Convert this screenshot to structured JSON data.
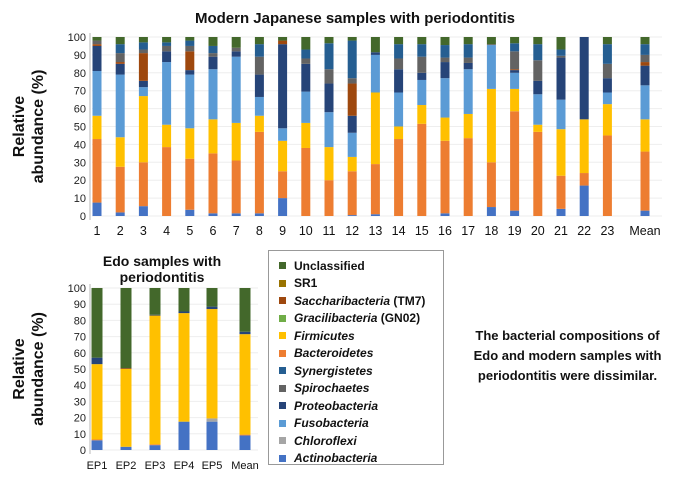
{
  "chart_data": [
    {
      "type": "bar",
      "stacked": true,
      "title": "Modern Japanese samples with periodontitis",
      "ylabel": "Relative abundance (%)",
      "ylim": [
        0,
        100
      ],
      "yticks": [
        0,
        10,
        20,
        30,
        40,
        50,
        60,
        70,
        80,
        90,
        100
      ],
      "categories": [
        "1",
        "2",
        "3",
        "4",
        "5",
        "6",
        "7",
        "8",
        "9",
        "10",
        "11",
        "12",
        "13",
        "14",
        "15",
        "16",
        "17",
        "18",
        "19",
        "20",
        "21",
        "22",
        "23",
        "Mean"
      ],
      "series": [
        {
          "name": "Actinobacteria",
          "values": [
            7.5,
            2,
            5.5,
            0,
            3.5,
            1.5,
            1.5,
            1.5,
            10,
            0,
            0,
            0.5,
            1,
            0,
            0,
            1.5,
            0,
            5,
            3,
            0,
            4,
            17,
            0,
            3
          ]
        },
        {
          "name": "Bacteroidetes",
          "values": [
            35.5,
            25.5,
            24.5,
            38.5,
            28.5,
            33.5,
            29.5,
            45.5,
            15,
            38,
            20,
            24.5,
            28,
            43,
            51.5,
            40.5,
            43.5,
            25,
            55.5,
            47,
            18.5,
            7,
            45,
            33
          ]
        },
        {
          "name": "Firmicutes",
          "values": [
            13,
            16.5,
            37,
            12.5,
            17,
            19,
            21,
            9,
            17,
            14,
            18.5,
            8,
            40,
            7,
            10.5,
            13,
            13.5,
            41,
            12.5,
            4,
            26,
            30,
            17.5,
            18
          ]
        },
        {
          "name": "Fusobacteria",
          "values": [
            25,
            35,
            5,
            35,
            30,
            28,
            37,
            10.5,
            7,
            17.5,
            19.5,
            13.5,
            21,
            19,
            14,
            22,
            25,
            24.5,
            9,
            17,
            16.5,
            0,
            6.5,
            19
          ]
        },
        {
          "name": "Proteobacteria",
          "values": [
            14,
            6,
            3.5,
            6,
            2.5,
            7,
            3,
            12.5,
            47,
            15.5,
            16,
            9.5,
            1.5,
            13,
            4,
            9,
            3.5,
            0,
            1.5,
            7.5,
            23.5,
            46,
            8,
            11
          ]
        },
        {
          "name": "Saccharibacteria (TM7)",
          "values": [
            1,
            1,
            15.5,
            0,
            10.5,
            0,
            0,
            0,
            2,
            0,
            0,
            18,
            0,
            0,
            0,
            0,
            0,
            0,
            0.5,
            0,
            0,
            0,
            0,
            2
          ]
        },
        {
          "name": "Spirochaetes",
          "values": [
            2,
            5,
            2,
            3,
            3,
            2,
            2,
            10,
            0,
            3,
            8,
            3,
            0,
            6,
            9,
            2.5,
            3,
            0.5,
            10,
            11.5,
            1,
            0,
            8,
            4
          ]
        },
        {
          "name": "Synergistetes",
          "values": [
            0,
            5,
            4,
            2,
            3,
            4,
            0,
            7,
            0,
            5,
            14.5,
            21,
            0,
            8,
            7,
            7,
            7.5,
            0,
            4.5,
            9,
            3.5,
            0,
            11,
            6
          ]
        },
        {
          "name": "Unclassified",
          "values": [
            2,
            4,
            3,
            3,
            2,
            5,
            6,
            4,
            2,
            7,
            3.5,
            2,
            8.5,
            4,
            4,
            4.5,
            4,
            4,
            3.5,
            4,
            7,
            0,
            4,
            4
          ]
        }
      ]
    },
    {
      "type": "bar",
      "stacked": true,
      "title": "Edo samples with periodontitis",
      "ylabel": "Relative abundance (%)",
      "ylim": [
        0,
        100
      ],
      "yticks": [
        0,
        10,
        20,
        30,
        40,
        50,
        60,
        70,
        80,
        90,
        100
      ],
      "categories": [
        "EP1",
        "EP2",
        "EP3",
        "EP4",
        "EP5",
        "Mean"
      ],
      "series": [
        {
          "name": "Actinobacteria",
          "values": [
            6,
            2,
            3,
            17.5,
            17.5,
            9
          ]
        },
        {
          "name": "Chloroflexi",
          "values": [
            0,
            0,
            0,
            0,
            2,
            0
          ]
        },
        {
          "name": "Bacteroidetes",
          "values": [
            0.5,
            0,
            0.5,
            0,
            0,
            0.5
          ]
        },
        {
          "name": "Firmicutes",
          "values": [
            46.5,
            48,
            79.5,
            67,
            67.5,
            62
          ]
        },
        {
          "name": "Proteobacteria",
          "values": [
            4,
            0,
            0.5,
            1,
            1.5,
            1.5
          ]
        },
        {
          "name": "Saccharibacteria (TM7)",
          "values": [
            0,
            0.5,
            0,
            0,
            0,
            0
          ]
        },
        {
          "name": "Unclassified",
          "values": [
            43,
            49.5,
            16.5,
            14.5,
            11.5,
            27
          ]
        }
      ]
    }
  ],
  "colors": {
    "Unclassified": "#43682b",
    "SR1": "#997300",
    "Saccharibacteria (TM7)": "#9e480e",
    "Gracilibacteria (GN02)": "#70ad47",
    "Firmicutes": "#ffc000",
    "Bacteroidetes": "#ed7d31",
    "Synergistetes": "#255e91",
    "Spirochaetes": "#636363",
    "Proteobacteria": "#264478",
    "Fusobacteria": "#5b9bd5",
    "Chloroflexi": "#a5a5a5",
    "Actinobacteria": "#4472c4"
  },
  "legend": [
    {
      "name": "Unclassified",
      "label": "Unclassified",
      "suffix": "",
      "italic": false
    },
    {
      "name": "SR1",
      "label": "SR1",
      "suffix": "",
      "italic": false
    },
    {
      "name": "Saccharibacteria (TM7)",
      "label": "Saccharibacteria",
      "suffix": " (TM7)",
      "italic": true
    },
    {
      "name": "Gracilibacteria (GN02)",
      "label": "Gracilibacteria",
      "suffix": " (GN02)",
      "italic": true
    },
    {
      "name": "Firmicutes",
      "label": "Firmicutes",
      "suffix": "",
      "italic": true
    },
    {
      "name": "Bacteroidetes",
      "label": "Bacteroidetes",
      "suffix": "",
      "italic": true
    },
    {
      "name": "Synergistetes",
      "label": "Synergistetes",
      "suffix": "",
      "italic": true
    },
    {
      "name": "Spirochaetes",
      "label": "Spirochaetes",
      "suffix": "",
      "italic": true
    },
    {
      "name": "Proteobacteria",
      "label": "Proteobacteria",
      "suffix": "",
      "italic": true
    },
    {
      "name": "Fusobacteria",
      "label": "Fusobacteria",
      "suffix": "",
      "italic": true
    },
    {
      "name": "Chloroflexi",
      "label": "Chloroflexi",
      "suffix": "",
      "italic": true
    },
    {
      "name": "Actinobacteria",
      "label": "Actinobacteria",
      "suffix": "",
      "italic": true
    }
  ],
  "note": {
    "lines": [
      "The bacterial compositions of",
      "Edo and modern samples with",
      "periodontitis were dissimilar."
    ]
  }
}
